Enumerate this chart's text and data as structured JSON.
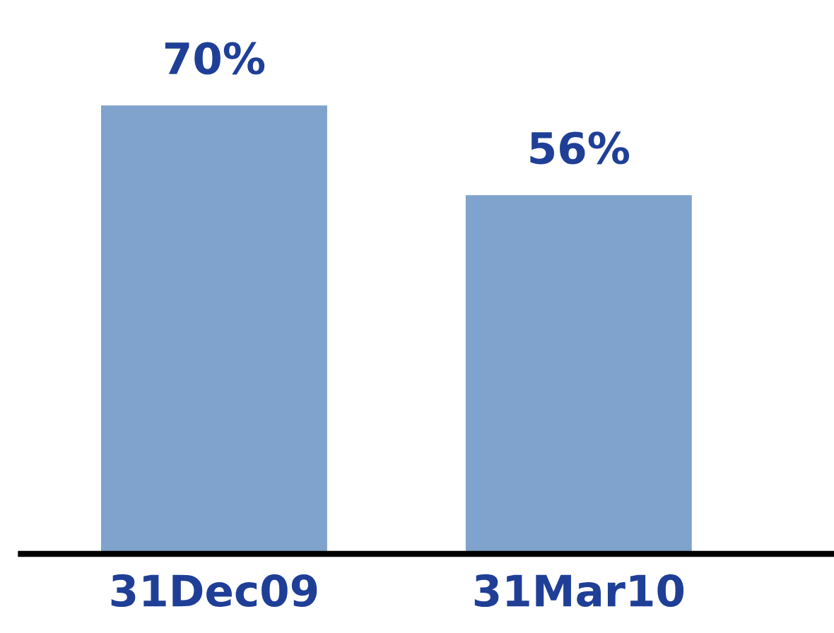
{
  "chart_data": {
    "type": "bar",
    "categories": [
      "31Dec09",
      "31Mar10"
    ],
    "series": [
      {
        "color": "#7fa3cc",
        "values": [
          70,
          56
        ],
        "value_labels": [
          "70%",
          "56%"
        ]
      }
    ],
    "grid": false,
    "legend": false,
    "tick_labels": "x"
  }
}
